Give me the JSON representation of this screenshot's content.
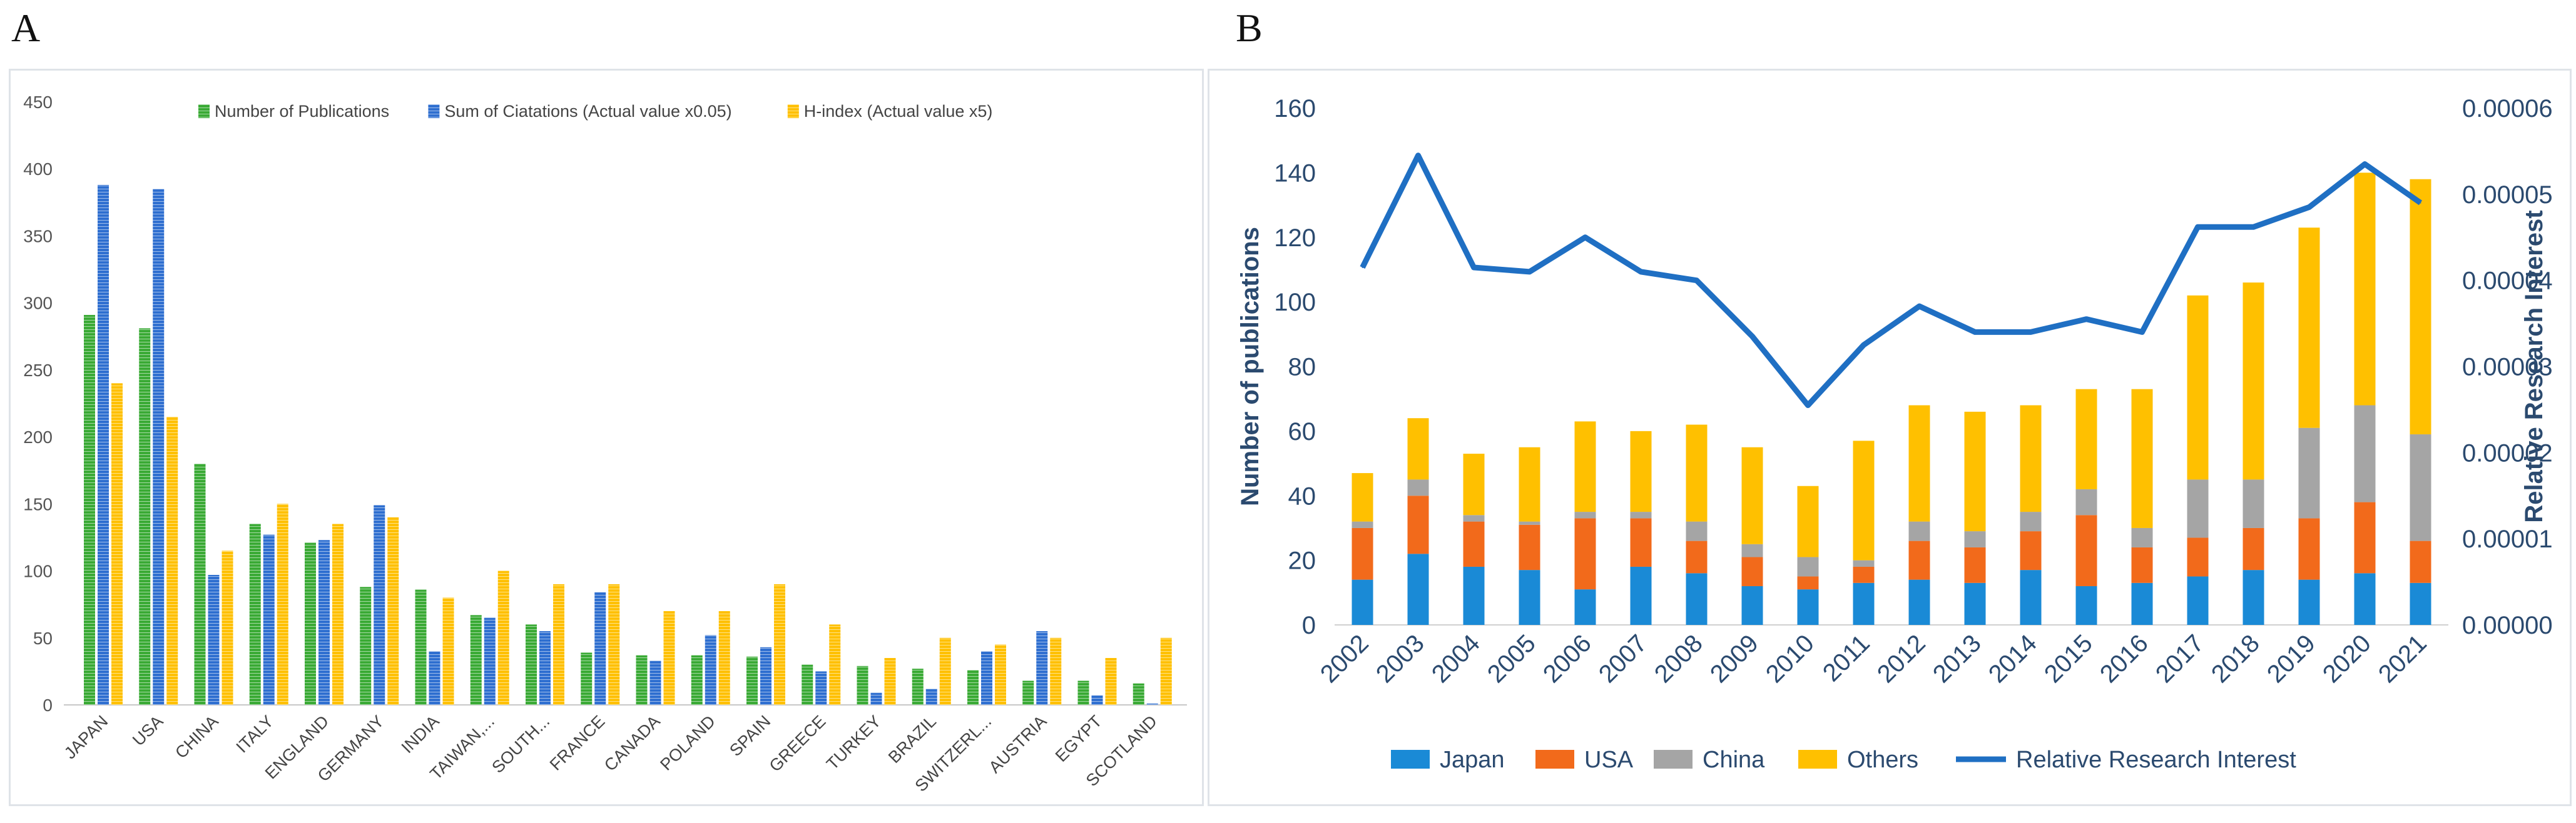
{
  "panels": {
    "a_label": "A",
    "b_label": "B"
  },
  "colors": {
    "green": "#3aaa35",
    "blue": "#2f6fd0",
    "yellow": "#ffc000",
    "japan": "#1a8ad6",
    "usa": "#f26a1b",
    "china": "#a5a5a5",
    "others": "#ffc000",
    "line": "#1f6fc3"
  },
  "chart_data": [
    {
      "type": "bar",
      "categories": [
        "JAPAN",
        "USA",
        "CHINA",
        "ITALY",
        "ENGLAND",
        "GERMANY",
        "INDIA",
        "TAIWAN,...",
        "SOUTH...",
        "FRANCE",
        "CANADA",
        "POLAND",
        "SPAIN",
        "GREECE",
        "TURKEY",
        "BRAZIL",
        "SWITZERL...",
        "AUSTRIA",
        "EGYPT",
        "SCOTLAND"
      ],
      "series": [
        {
          "name": "Number  of Publications",
          "values": [
            291,
            281,
            180,
            135,
            121,
            88,
            86,
            67,
            60,
            39,
            37,
            37,
            36,
            30,
            29,
            27,
            26,
            18,
            18,
            16
          ]
        },
        {
          "name": "Sum of Ciatations (Actual value x0.05)",
          "values": [
            388,
            385,
            97,
            127,
            123,
            149,
            40,
            65,
            55,
            84,
            33,
            52,
            43,
            25,
            9,
            12,
            40,
            55,
            7,
            1
          ]
        },
        {
          "name": "H-index (Actual value x5)",
          "values": [
            240,
            215,
            115,
            150,
            135,
            140,
            80,
            100,
            90,
            90,
            70,
            70,
            90,
            60,
            35,
            50,
            45,
            50,
            35,
            50
          ]
        }
      ],
      "yticks": [
        "0",
        "50",
        "100",
        "150",
        "200",
        "250",
        "300",
        "350",
        "400",
        "450"
      ],
      "ylim": [
        0,
        450
      ],
      "legend": "top"
    },
    {
      "type": "bar+line",
      "x": [
        "2002",
        "2003",
        "2004",
        "2005",
        "2006",
        "2007",
        "2008",
        "2009",
        "2010",
        "2011",
        "2012",
        "2013",
        "2014",
        "2015",
        "2016",
        "2017",
        "2018",
        "2019",
        "2020",
        "2021"
      ],
      "series": [
        {
          "name": "Japan",
          "values": [
            14,
            22,
            18,
            17,
            11,
            18,
            16,
            12,
            11,
            13,
            14,
            13,
            17,
            12,
            13,
            15,
            17,
            14,
            16,
            13
          ]
        },
        {
          "name": "USA",
          "values": [
            16,
            18,
            14,
            14,
            22,
            15,
            10,
            9,
            4,
            5,
            12,
            11,
            12,
            22,
            11,
            12,
            13,
            19,
            22,
            13
          ]
        },
        {
          "name": "China",
          "values": [
            2,
            5,
            2,
            1,
            2,
            2,
            6,
            4,
            6,
            2,
            6,
            5,
            6,
            8,
            6,
            18,
            15,
            28,
            30,
            33
          ]
        },
        {
          "name": "Others",
          "values": [
            15,
            19,
            19,
            23,
            28,
            25,
            30,
            30,
            22,
            37,
            36,
            37,
            33,
            31,
            43,
            57,
            61,
            62,
            72,
            79
          ]
        },
        {
          "name": "Relative Research Interest",
          "axis": "right",
          "values": [
            4.15e-05,
            5.45e-05,
            4.15e-05,
            4.1e-05,
            4.5e-05,
            4.1e-05,
            4e-05,
            3.35e-05,
            2.55e-05,
            3.25e-05,
            3.7e-05,
            3.4e-05,
            3.4e-05,
            3.55e-05,
            3.4e-05,
            4.62e-05,
            4.62e-05,
            4.85e-05,
            5.35e-05,
            4.9e-05
          ]
        }
      ],
      "ylabel": "Number of publications",
      "y2label": "Relative Research Interest",
      "ylim": [
        0,
        160
      ],
      "y2lim": [
        0,
        6e-05
      ],
      "yticks": [
        "0",
        "20",
        "40",
        "60",
        "80",
        "100",
        "120",
        "140",
        "160"
      ],
      "y2ticks": [
        "0.00000",
        "0.00001",
        "0.00002",
        "0.00003",
        "0.00004",
        "0.00005",
        "0.00006"
      ],
      "legend": "bottom"
    }
  ]
}
